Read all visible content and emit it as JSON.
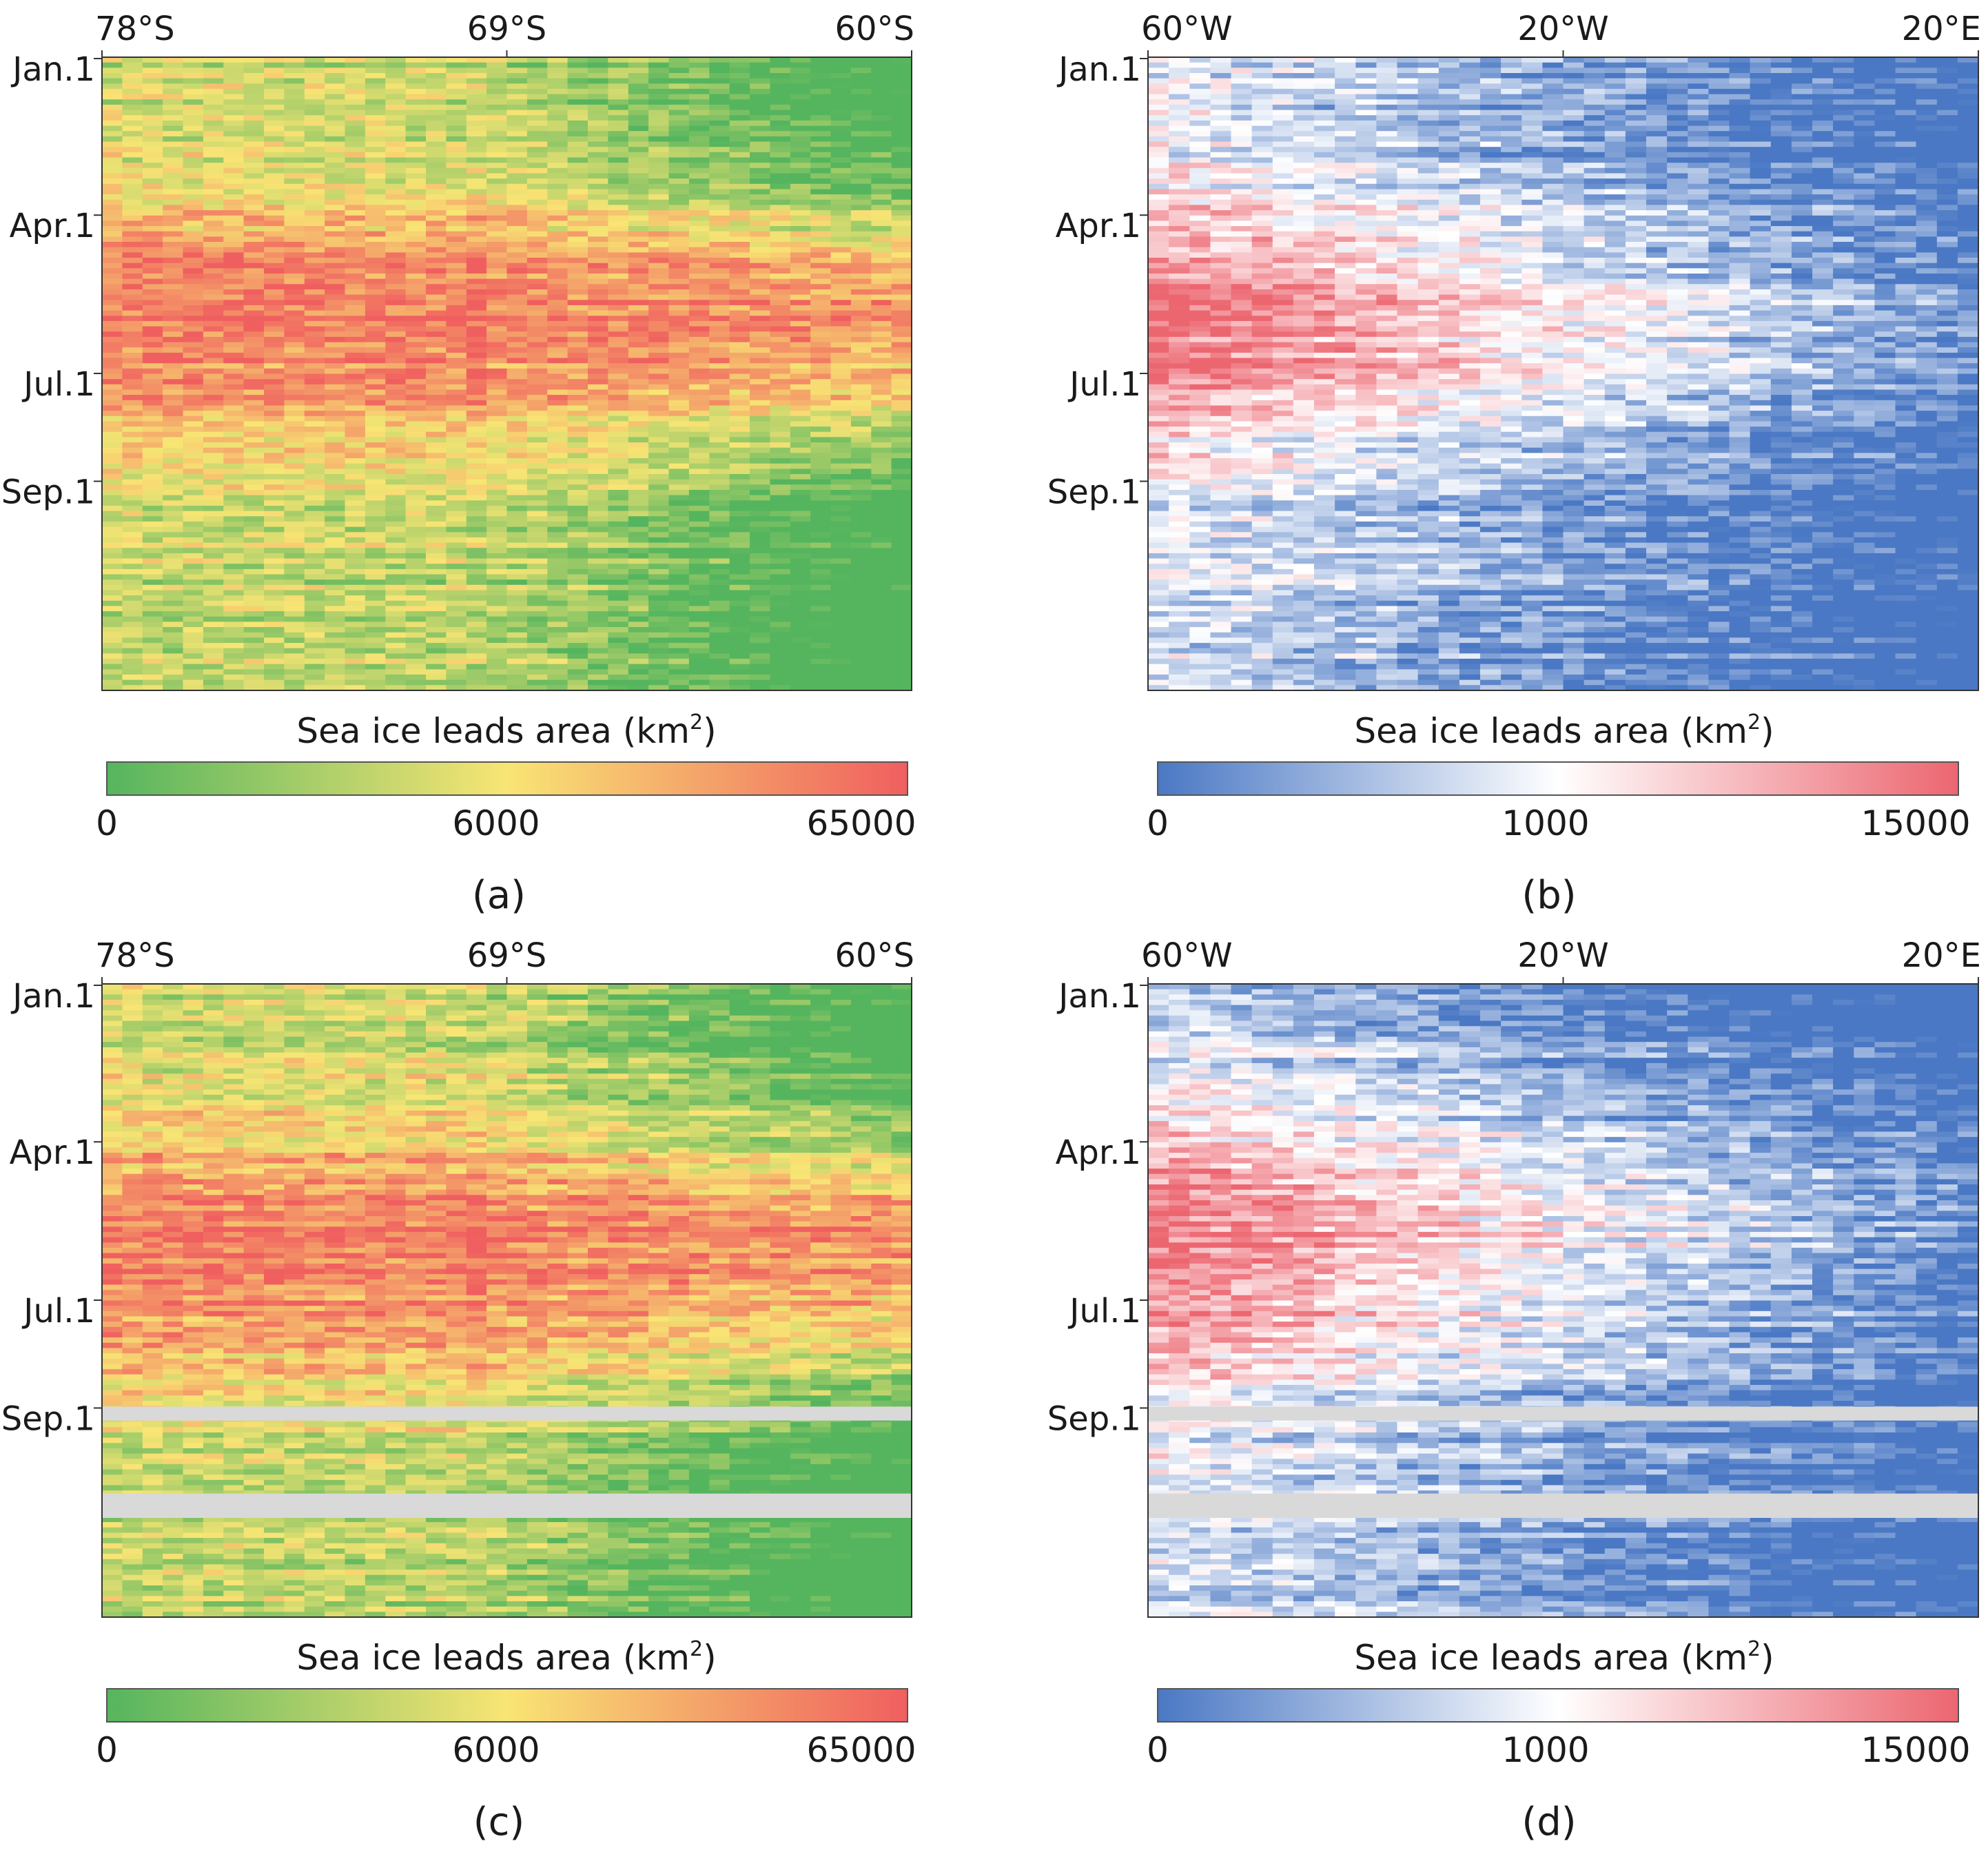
{
  "chart_data": [
    {
      "id": "a",
      "type": "heatmap",
      "panel_label": "(a)",
      "x_axis_top": {
        "ticks": [
          "78°S",
          "69°S",
          "60°S"
        ],
        "values": [
          -78,
          -69,
          -60
        ],
        "range": [
          -78,
          -60
        ]
      },
      "y_axis": {
        "ticks": [
          "Jan.1",
          "Apr.1",
          "Jul.1",
          "Sep.1"
        ],
        "day_of_year": [
          1,
          91,
          182,
          244
        ],
        "range_days": [
          1,
          365
        ]
      },
      "colorbar": {
        "label": "Sea ice leads area (km",
        "label_sup": "2",
        "label_end": ")",
        "ticks": [
          "0",
          "6000",
          "65000"
        ],
        "colors": [
          "#55b55e",
          "#f8e574",
          "#f05f5f"
        ]
      },
      "missing_bands_days": [],
      "description_values": {
        "peak_region_lat": -69,
        "peak_period": "Apr–Jul",
        "max_km2": 65000
      }
    },
    {
      "id": "b",
      "type": "heatmap",
      "panel_label": "(b)",
      "x_axis_top": {
        "ticks": [
          "60°W",
          "20°W",
          "20°E"
        ],
        "values": [
          -60,
          -20,
          20
        ],
        "range": [
          -60,
          20
        ]
      },
      "y_axis": {
        "ticks": [
          "Jan.1",
          "Apr.1",
          "Jul.1",
          "Sep.1"
        ],
        "day_of_year": [
          1,
          91,
          182,
          244
        ],
        "range_days": [
          1,
          365
        ]
      },
      "colorbar": {
        "label": "Sea ice leads area (km",
        "label_sup": "2",
        "label_end": ")",
        "ticks": [
          "0",
          "1000",
          "15000"
        ],
        "colors": [
          "#4a78c4",
          "#ffffff",
          "#ec6670"
        ]
      },
      "missing_bands_days": [],
      "description_values": {
        "peak_region_lon": -50,
        "peak_period": "Apr–Jul",
        "max_km2": 15000
      }
    },
    {
      "id": "c",
      "type": "heatmap",
      "panel_label": "(c)",
      "x_axis_top": {
        "ticks": [
          "78°S",
          "69°S",
          "60°S"
        ],
        "values": [
          -78,
          -69,
          -60
        ],
        "range": [
          -78,
          -60
        ]
      },
      "y_axis": {
        "ticks": [
          "Jan.1",
          "Apr.1",
          "Jul.1",
          "Sep.1"
        ],
        "day_of_year": [
          1,
          91,
          182,
          244
        ],
        "range_days": [
          1,
          365
        ]
      },
      "colorbar": {
        "label": "Sea ice leads area (km",
        "label_sup": "2",
        "label_end": ")",
        "ticks": [
          "0",
          "6000",
          "65000"
        ],
        "colors": [
          "#55b55e",
          "#f8e574",
          "#f05f5f"
        ]
      },
      "missing_bands_days": [
        [
          244,
          252
        ],
        [
          294,
          308
        ]
      ],
      "description_values": {
        "peak_region_lat": -69,
        "peak_period": "May–Jul",
        "max_km2": 65000
      }
    },
    {
      "id": "d",
      "type": "heatmap",
      "panel_label": "(d)",
      "x_axis_top": {
        "ticks": [
          "60°W",
          "20°W",
          "20°E"
        ],
        "values": [
          -60,
          -20,
          20
        ],
        "range": [
          -60,
          20
        ]
      },
      "y_axis": {
        "ticks": [
          "Jan.1",
          "Apr.1",
          "Jul.1",
          "Sep.1"
        ],
        "day_of_year": [
          1,
          91,
          182,
          244
        ],
        "range_days": [
          1,
          365
        ]
      },
      "colorbar": {
        "label": "Sea ice leads area (km",
        "label_sup": "2",
        "label_end": ")",
        "ticks": [
          "0",
          "1000",
          "15000"
        ],
        "colors": [
          "#4a78c4",
          "#ffffff",
          "#ec6670"
        ]
      },
      "missing_bands_days": [
        [
          244,
          252
        ],
        [
          294,
          308
        ]
      ],
      "description_values": {
        "peak_region_lon": -50,
        "peak_period": "May–Jul",
        "max_km2": 15000
      }
    }
  ]
}
